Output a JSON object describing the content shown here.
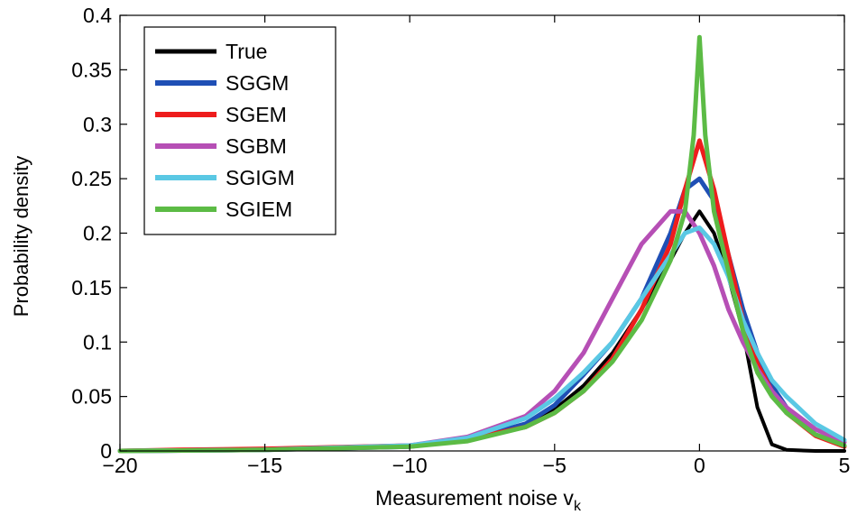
{
  "chart_data": {
    "type": "line",
    "xlabel": "Measurement noise  v",
    "xlabel_subscript": "k",
    "ylabel": "Probability density",
    "xlim": [
      -20,
      5
    ],
    "ylim": [
      0,
      0.4
    ],
    "x_ticks": [
      -20,
      -15,
      -10,
      -5,
      0,
      5
    ],
    "x_tick_labels": [
      "−20",
      "−15",
      "−10",
      "−5",
      "0",
      "5"
    ],
    "y_ticks": [
      0,
      0.05,
      0.1,
      0.15,
      0.2,
      0.25,
      0.3,
      0.35,
      0.4
    ],
    "y_tick_labels": [
      "0",
      "0.05",
      "0.1",
      "0.15",
      "0.2",
      "0.25",
      "0.3",
      "0.35",
      "0.4"
    ],
    "grid": false,
    "legend_position": "top-left",
    "series": [
      {
        "name": "True",
        "color": "#000000",
        "x": [
          -20,
          -15,
          -10,
          -8,
          -6,
          -5,
          -4,
          -3,
          -2,
          -1,
          -0.5,
          0,
          0.5,
          1,
          1.5,
          2,
          2.5,
          3,
          4,
          5
        ],
        "y": [
          0,
          0.001,
          0.004,
          0.01,
          0.022,
          0.038,
          0.06,
          0.09,
          0.13,
          0.175,
          0.2,
          0.22,
          0.2,
          0.16,
          0.11,
          0.04,
          0.006,
          0.001,
          0,
          0
        ]
      },
      {
        "name": "SGGM",
        "color": "#1f4fb5",
        "x": [
          -20,
          -15,
          -10,
          -8,
          -6,
          -5,
          -4,
          -3,
          -2,
          -1,
          -0.5,
          0,
          0.5,
          1,
          1.5,
          2,
          2.5,
          3,
          4,
          5
        ],
        "y": [
          0,
          0.001,
          0.004,
          0.01,
          0.025,
          0.042,
          0.07,
          0.1,
          0.14,
          0.2,
          0.24,
          0.25,
          0.23,
          0.18,
          0.13,
          0.09,
          0.06,
          0.04,
          0.015,
          0.005
        ]
      },
      {
        "name": "SGEM",
        "color": "#ee1c1c",
        "x": [
          -20,
          -18,
          -15,
          -10,
          -8,
          -6,
          -5,
          -4,
          -3,
          -2,
          -1,
          -0.5,
          0,
          0.5,
          1,
          1.5,
          2,
          2.5,
          3,
          4,
          5
        ],
        "y": [
          0,
          0.001,
          0.002,
          0.005,
          0.011,
          0.022,
          0.035,
          0.055,
          0.085,
          0.13,
          0.19,
          0.24,
          0.285,
          0.24,
          0.18,
          0.12,
          0.08,
          0.055,
          0.035,
          0.014,
          0.004
        ]
      },
      {
        "name": "SGBM",
        "color": "#b64fb5",
        "x": [
          -20,
          -15,
          -10,
          -8,
          -6,
          -5,
          -4,
          -3,
          -2,
          -1,
          -0.5,
          0,
          0.5,
          1,
          1.5,
          2,
          2.5,
          3,
          4,
          5
        ],
        "y": [
          0,
          0.001,
          0.005,
          0.013,
          0.032,
          0.055,
          0.09,
          0.14,
          0.19,
          0.22,
          0.22,
          0.2,
          0.17,
          0.13,
          0.1,
          0.075,
          0.055,
          0.04,
          0.02,
          0.008
        ]
      },
      {
        "name": "SGIGM",
        "color": "#5ac8e4",
        "x": [
          -20,
          -15,
          -10,
          -8,
          -6,
          -5,
          -4,
          -3,
          -2,
          -1,
          -0.5,
          0,
          0.5,
          1,
          1.5,
          2,
          2.5,
          3,
          4,
          5
        ],
        "y": [
          0,
          0.001,
          0.005,
          0.012,
          0.03,
          0.048,
          0.072,
          0.1,
          0.14,
          0.18,
          0.2,
          0.205,
          0.19,
          0.16,
          0.12,
          0.09,
          0.065,
          0.05,
          0.025,
          0.01
        ]
      },
      {
        "name": "SGIEM",
        "color": "#5cbb45",
        "x": [
          -20,
          -15,
          -10,
          -8,
          -6,
          -5,
          -4,
          -3,
          -2,
          -1,
          -0.5,
          -0.2,
          0,
          0.2,
          0.5,
          1,
          1.5,
          2,
          2.5,
          3,
          4,
          5
        ],
        "y": [
          0,
          0.001,
          0.004,
          0.009,
          0.022,
          0.035,
          0.055,
          0.082,
          0.12,
          0.175,
          0.22,
          0.29,
          0.38,
          0.29,
          0.22,
          0.165,
          0.11,
          0.072,
          0.05,
          0.035,
          0.015,
          0.005
        ]
      }
    ]
  }
}
